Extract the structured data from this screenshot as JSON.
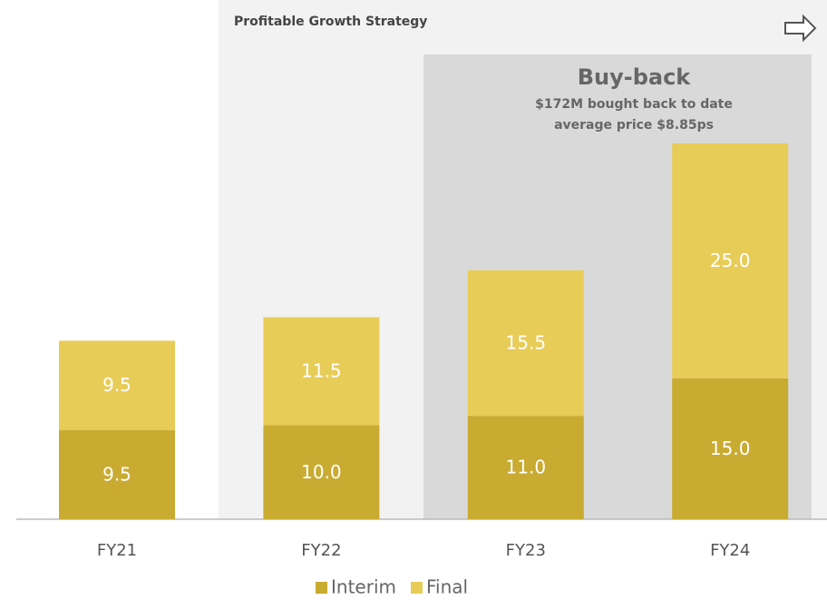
{
  "chart_data": {
    "type": "stacked_bar",
    "annotations": [
      "Profitable Growth Strategy",
      "Buy-back",
      "$172M bought back to date",
      "average price $8.85ps"
    ],
    "categories": [
      "FY21",
      "FY22",
      "FY23",
      "FY24"
    ],
    "series": [
      {
        "name": "Interim",
        "color": "#c9ab32",
        "values": [
          9.5,
          10,
          11,
          15
        ],
        "value_labels": [
          "9.5",
          "10.0",
          "11.0",
          "15.0"
        ]
      },
      {
        "name": "Final",
        "color": "#e8cc58",
        "values": [
          9.5,
          11.5,
          15.5,
          25
        ],
        "value_labels": [
          "9.5",
          "11.5",
          "15.5",
          "25.0"
        ]
      }
    ]
  }
}
